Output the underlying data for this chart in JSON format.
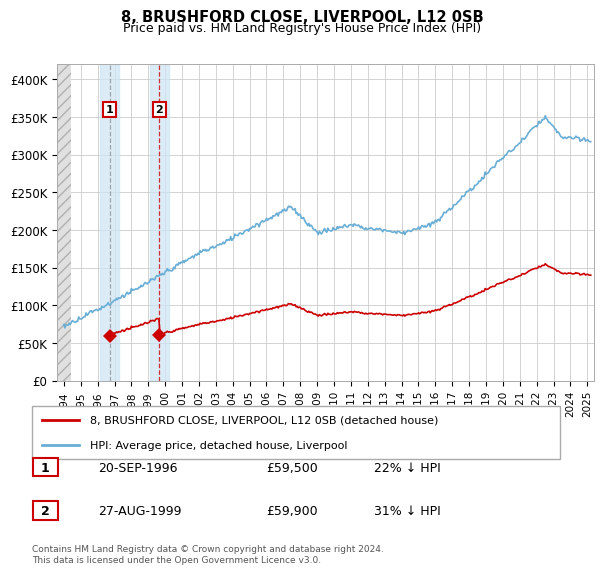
{
  "title": "8, BRUSHFORD CLOSE, LIVERPOOL, L12 0SB",
  "subtitle": "Price paid vs. HM Land Registry's House Price Index (HPI)",
  "ylim": [
    0,
    420000
  ],
  "yticks": [
    0,
    50000,
    100000,
    150000,
    200000,
    250000,
    300000,
    350000,
    400000
  ],
  "ytick_labels": [
    "£0",
    "£50K",
    "£100K",
    "£150K",
    "£200K",
    "£250K",
    "£300K",
    "£350K",
    "£400K"
  ],
  "hpi_color": "#6aaed6",
  "price_color": "#cc0000",
  "sale1_date": 1996.72,
  "sale1_price": 59500,
  "sale2_date": 1999.65,
  "sale2_price": 59900,
  "legend_address": "8, BRUSHFORD CLOSE, LIVERPOOL, L12 0SB (detached house)",
  "legend_hpi": "HPI: Average price, detached house, Liverpool",
  "table_row1": [
    "1",
    "20-SEP-1996",
    "£59,500",
    "22% ↓ HPI"
  ],
  "table_row2": [
    "2",
    "27-AUG-1999",
    "£59,900",
    "31% ↓ HPI"
  ],
  "footnote": "Contains HM Land Registry data © Crown copyright and database right 2024.\nThis data is licensed under the Open Government Licence v3.0.",
  "background_color": "#ffffff",
  "grid_color": "#cccccc",
  "xlim_left": 1993.6,
  "xlim_right": 2025.4
}
